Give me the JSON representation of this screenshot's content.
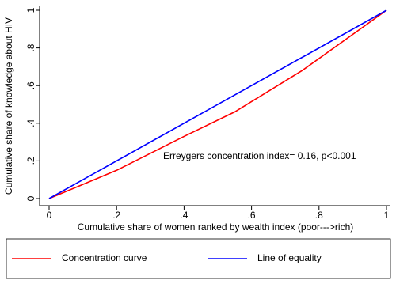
{
  "chart_data": {
    "type": "line",
    "xlabel": "Cumulative share of women ranked by wealth index (poor--->rich)",
    "ylabel": "Cumulative share of knowledge about HIV",
    "annotation": "Erreygers concentration index= 0.16, p<0.001",
    "series": [
      {
        "name": "Concentration curve",
        "color": "#ff0000",
        "x": [
          0,
          0.2,
          0.4,
          0.55,
          0.75,
          1
        ],
        "values": [
          0,
          0.15,
          0.33,
          0.46,
          0.68,
          1
        ]
      },
      {
        "name": "Line of equality",
        "color": "#0000ff",
        "x": [
          0,
          1
        ],
        "values": [
          0,
          1
        ]
      }
    ],
    "xlim": [
      0,
      1
    ],
    "ylim": [
      0,
      1
    ],
    "xticks": [
      0,
      {
        "value": 0.2,
        "label": ".2"
      },
      {
        "value": 0.4,
        "label": ".4"
      },
      {
        "value": 0.6,
        "label": ".6"
      },
      {
        "value": 0.8,
        "label": ".8"
      },
      1
    ],
    "yticks": [
      0,
      {
        "value": 0.2,
        "label": ".2"
      },
      {
        "value": 0.4,
        "label": ".4"
      },
      {
        "value": 0.6,
        "label": ".6"
      },
      {
        "value": 0.8,
        "label": ".8"
      },
      1
    ],
    "grid": false,
    "legend": "bottom"
  }
}
